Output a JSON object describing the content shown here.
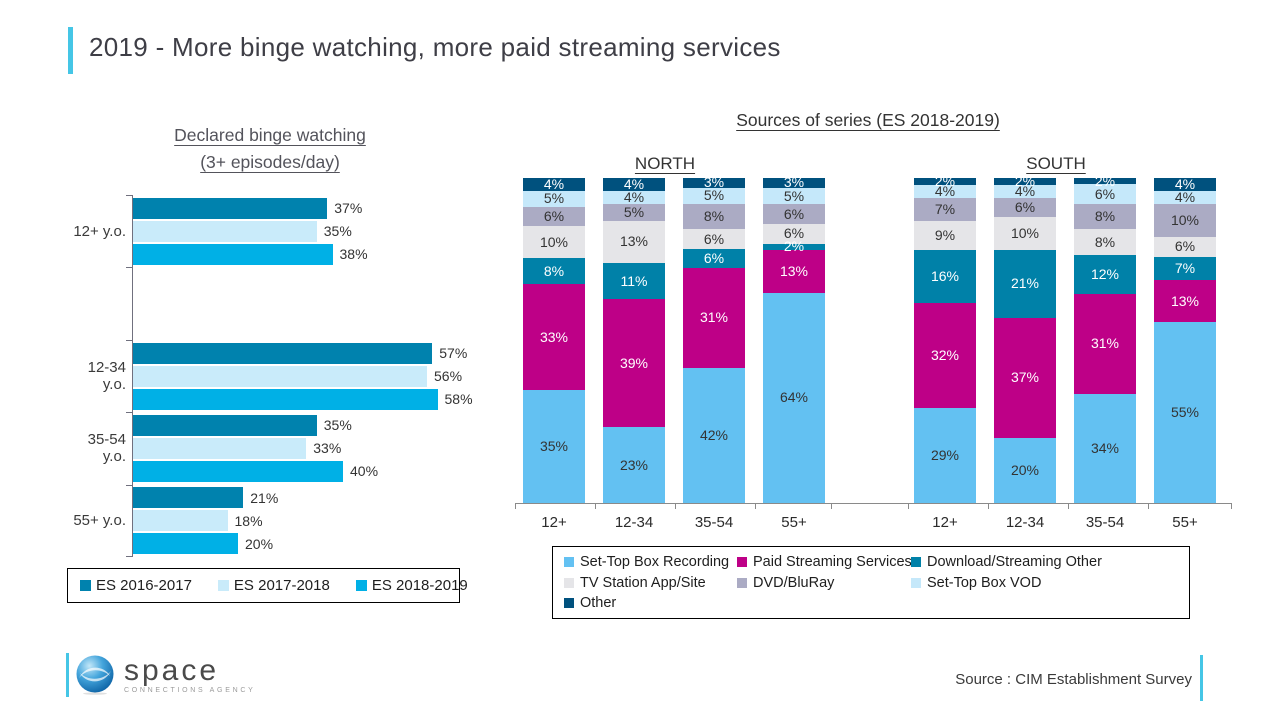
{
  "slide": {
    "title": "2019 - More binge watching, more paid streaming services",
    "accent_color": "#45C6E6"
  },
  "chart_data": [
    {
      "type": "bar",
      "orientation": "horizontal",
      "title": "Declared binge watching (3+ episodes/day)",
      "title_lines": [
        "Declared binge watching",
        "(3+ episodes/day)"
      ],
      "categories": [
        "12+ y.o.",
        "12-34 y.o.",
        "35-54 y.o.",
        "55+ y.o."
      ],
      "series": [
        {
          "name": "ES 2016-2017",
          "color": "#0082AE",
          "values": [
            37,
            57,
            35,
            21
          ]
        },
        {
          "name": "ES 2017-2018",
          "color": "#C9EBFA",
          "values": [
            35,
            56,
            33,
            18
          ]
        },
        {
          "name": "ES 2018-2019",
          "color": "#00B0E6",
          "values": [
            38,
            58,
            40,
            20
          ]
        }
      ],
      "value_suffix": "%",
      "xlim": [
        0,
        62
      ],
      "legend_position": "bottom"
    },
    {
      "type": "bar",
      "subtype": "stacked-100",
      "title": "Sources of series (ES 2018-2019)",
      "region_labels": [
        "NORTH",
        "SOUTH"
      ],
      "categories": [
        "12+",
        "12-34",
        "35-54",
        "55+"
      ],
      "series": [
        {
          "name": "Set-Top Box Recording",
          "color": "#63C1F2",
          "text_color": "#333333",
          "north": [
            35,
            23,
            42,
            64
          ],
          "south": [
            29,
            20,
            34,
            55
          ]
        },
        {
          "name": "Paid Streaming Services",
          "color": "#BE0087",
          "text_color": "#FFFFFF",
          "north": [
            33,
            39,
            31,
            13
          ],
          "south": [
            32,
            37,
            31,
            13
          ]
        },
        {
          "name": "Download/Streaming Other",
          "color": "#0081A8",
          "text_color": "#FFFFFF",
          "north": [
            8,
            11,
            6,
            2
          ],
          "south": [
            16,
            21,
            12,
            7
          ]
        },
        {
          "name": "TV Station App/Site",
          "color": "#E5E5E8",
          "text_color": "#333333",
          "north": [
            10,
            13,
            6,
            6
          ],
          "south": [
            9,
            10,
            8,
            6
          ]
        },
        {
          "name": "DVD/BluRay",
          "color": "#ABABC4",
          "text_color": "#333333",
          "north": [
            6,
            5,
            8,
            6
          ],
          "south": [
            7,
            6,
            8,
            10
          ]
        },
        {
          "name": "Set-Top Box VOD",
          "color": "#C5E8FA",
          "text_color": "#333333",
          "north": [
            5,
            4,
            5,
            5
          ],
          "south": [
            4,
            4,
            6,
            4
          ]
        },
        {
          "name": "Other",
          "color": "#00517E",
          "text_color": "#FFFFFF",
          "north": [
            4,
            4,
            3,
            3
          ],
          "south": [
            2,
            2,
            2,
            4
          ]
        }
      ],
      "value_suffix": "%",
      "legend_position": "bottom"
    }
  ],
  "footer": {
    "logo_name": "space",
    "logo_tagline": "CONNECTIONS AGENCY",
    "source_text": "Source : CIM Establishment Survey"
  }
}
